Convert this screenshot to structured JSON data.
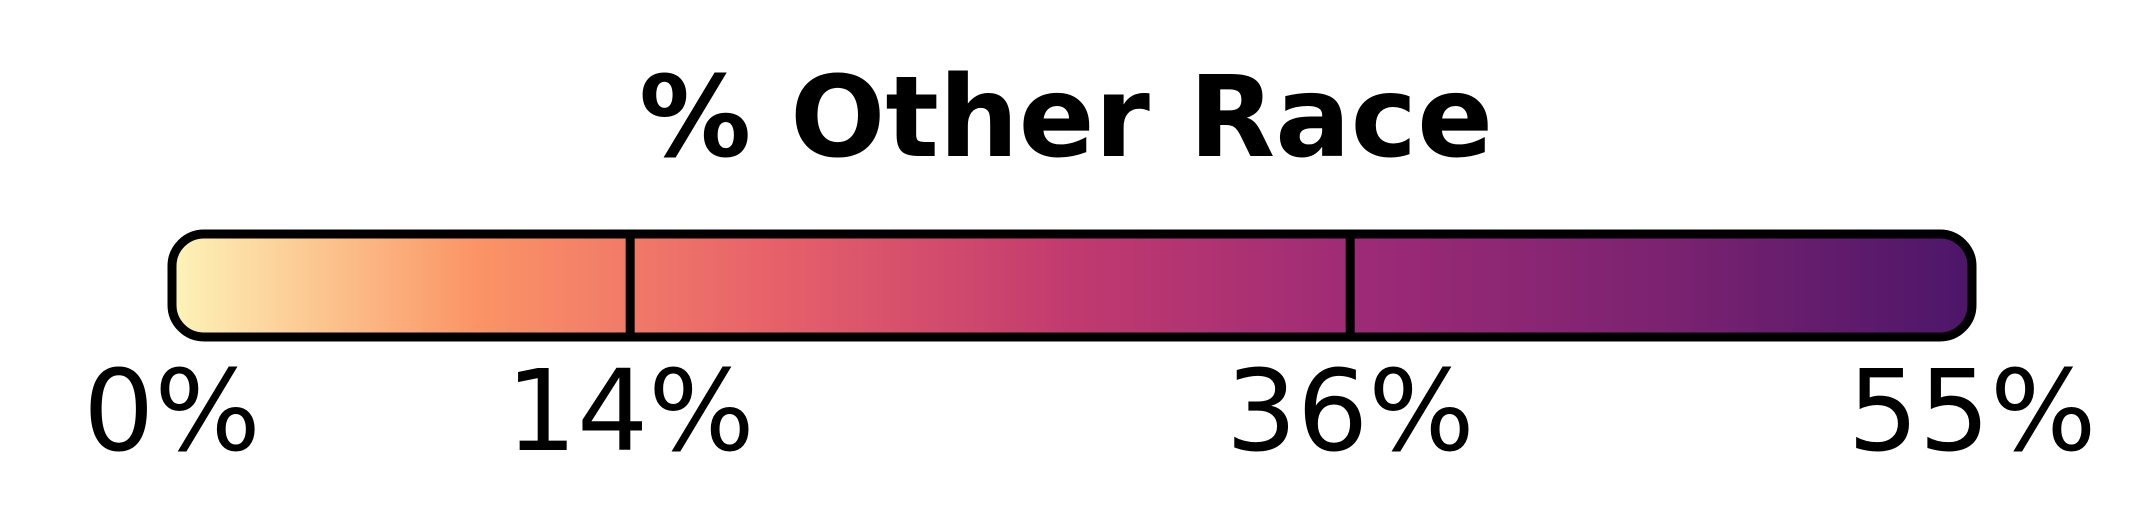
{
  "chart_data": {
    "type": "legend",
    "title": "% Other Race",
    "min": 0,
    "max": 55,
    "breaks": [
      0,
      14,
      36,
      55
    ],
    "tick_labels": [
      "0%",
      "14%",
      "36%",
      "55%"
    ],
    "colormap": "magma",
    "color_stops": [
      "#fcf4b8",
      "#fb9566",
      "#e7616a",
      "#c13a6f",
      "#9c2a76",
      "#7a2270",
      "#4c1669"
    ],
    "outline_color": "#000000"
  }
}
